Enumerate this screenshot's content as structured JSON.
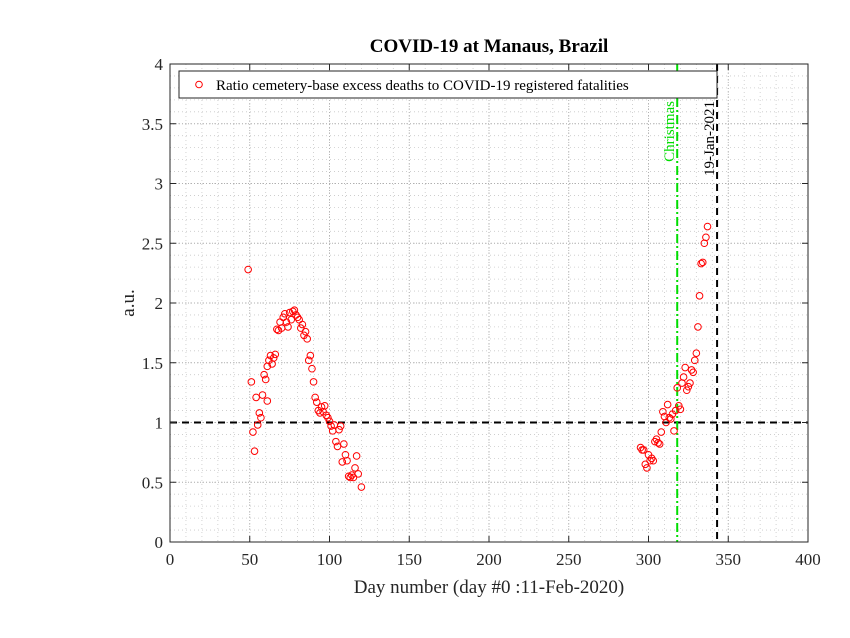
{
  "chart_data": {
    "type": "scatter",
    "title": "COVID-19 at Manaus, Brazil",
    "xlabel": "Day number (day #0 :11-Feb-2020)",
    "ylabel": "a.u.",
    "xlim": [
      0,
      400
    ],
    "ylim": [
      0,
      4
    ],
    "xticks": [
      "0",
      "50",
      "100",
      "150",
      "200",
      "250",
      "300",
      "350",
      "400"
    ],
    "yticks": [
      "0",
      "0.5",
      "1",
      "1.5",
      "2",
      "2.5",
      "3",
      "3.5",
      "4"
    ],
    "grid": "minor dotted",
    "legend": {
      "position": "top-left",
      "entries": [
        "Ratio cemetery-base excess deaths to COVID-19 registered fatalities"
      ]
    },
    "colors": {
      "series": "#ff0000",
      "christmas": "#00dd00",
      "reference": "#000000"
    },
    "series": [
      {
        "name": "Ratio cemetery-base excess deaths to COVID-19 registered fatalities",
        "marker": "circle-open",
        "points": [
          [
            49,
            2.28
          ],
          [
            51,
            1.34
          ],
          [
            52,
            0.92
          ],
          [
            53,
            0.76
          ],
          [
            54,
            1.21
          ],
          [
            55,
            0.98
          ],
          [
            56,
            1.08
          ],
          [
            57,
            1.04
          ],
          [
            58,
            1.23
          ],
          [
            59,
            1.4
          ],
          [
            60,
            1.36
          ],
          [
            61,
            1.18
          ],
          [
            61,
            1.47
          ],
          [
            62,
            1.52
          ],
          [
            63,
            1.56
          ],
          [
            64,
            1.49
          ],
          [
            65,
            1.54
          ],
          [
            66,
            1.57
          ],
          [
            67,
            1.78
          ],
          [
            68,
            1.77
          ],
          [
            69,
            1.84
          ],
          [
            70,
            1.79
          ],
          [
            71,
            1.88
          ],
          [
            72,
            1.91
          ],
          [
            73,
            1.84
          ],
          [
            74,
            1.8
          ],
          [
            75,
            1.92
          ],
          [
            76,
            1.86
          ],
          [
            77,
            1.93
          ],
          [
            78,
            1.94
          ],
          [
            79,
            1.9
          ],
          [
            80,
            1.88
          ],
          [
            81,
            1.86
          ],
          [
            82,
            1.79
          ],
          [
            83,
            1.82
          ],
          [
            84,
            1.73
          ],
          [
            85,
            1.76
          ],
          [
            86,
            1.7
          ],
          [
            87,
            1.52
          ],
          [
            88,
            1.56
          ],
          [
            89,
            1.45
          ],
          [
            90,
            1.34
          ],
          [
            91,
            1.21
          ],
          [
            92,
            1.17
          ],
          [
            93,
            1.1
          ],
          [
            94,
            1.08
          ],
          [
            95,
            1.13
          ],
          [
            96,
            1.09
          ],
          [
            97,
            1.14
          ],
          [
            98,
            1.06
          ],
          [
            99,
            1.04
          ],
          [
            100,
            1.01
          ],
          [
            101,
            0.97
          ],
          [
            102,
            0.93
          ],
          [
            103,
            0.98
          ],
          [
            104,
            0.84
          ],
          [
            105,
            0.8
          ],
          [
            106,
            0.94
          ],
          [
            107,
            0.97
          ],
          [
            108,
            0.67
          ],
          [
            109,
            0.82
          ],
          [
            110,
            0.73
          ],
          [
            111,
            0.68
          ],
          [
            112,
            0.55
          ],
          [
            113,
            0.54
          ],
          [
            114,
            0.56
          ],
          [
            115,
            0.54
          ],
          [
            116,
            0.62
          ],
          [
            117,
            0.72
          ],
          [
            118,
            0.57
          ],
          [
            120,
            0.46
          ],
          [
            295,
            0.79
          ],
          [
            296,
            0.77
          ],
          [
            297,
            0.77
          ],
          [
            298,
            0.65
          ],
          [
            299,
            0.62
          ],
          [
            300,
            0.73
          ],
          [
            301,
            0.68
          ],
          [
            302,
            0.7
          ],
          [
            303,
            0.68
          ],
          [
            304,
            0.84
          ],
          [
            305,
            0.86
          ],
          [
            306,
            0.83
          ],
          [
            307,
            0.82
          ],
          [
            308,
            0.92
          ],
          [
            309,
            1.09
          ],
          [
            310,
            1.05
          ],
          [
            311,
            1.0
          ],
          [
            312,
            1.15
          ],
          [
            313,
            1.04
          ],
          [
            314,
            1.03
          ],
          [
            315,
            1.07
          ],
          [
            316,
            0.93
          ],
          [
            317,
            1.1
          ],
          [
            318,
            1.29
          ],
          [
            319,
            1.14
          ],
          [
            320,
            1.11
          ],
          [
            321,
            1.33
          ],
          [
            322,
            1.38
          ],
          [
            323,
            1.46
          ],
          [
            324,
            1.27
          ],
          [
            325,
            1.3
          ],
          [
            326,
            1.33
          ],
          [
            327,
            1.44
          ],
          [
            328,
            1.42
          ],
          [
            329,
            1.52
          ],
          [
            330,
            1.58
          ],
          [
            331,
            1.8
          ],
          [
            332,
            2.06
          ],
          [
            333,
            2.33
          ],
          [
            334,
            2.34
          ],
          [
            335,
            2.5
          ],
          [
            336,
            2.55
          ],
          [
            337,
            2.64
          ]
        ]
      }
    ],
    "reference_lines": [
      {
        "orientation": "horizontal",
        "value": 1,
        "style": "dashed",
        "label": ""
      },
      {
        "orientation": "vertical",
        "value": 318,
        "style": "dash-dot",
        "label": "Christmas"
      },
      {
        "orientation": "vertical",
        "value": 343,
        "style": "dashed",
        "label": "19-Jan-2021"
      }
    ]
  }
}
